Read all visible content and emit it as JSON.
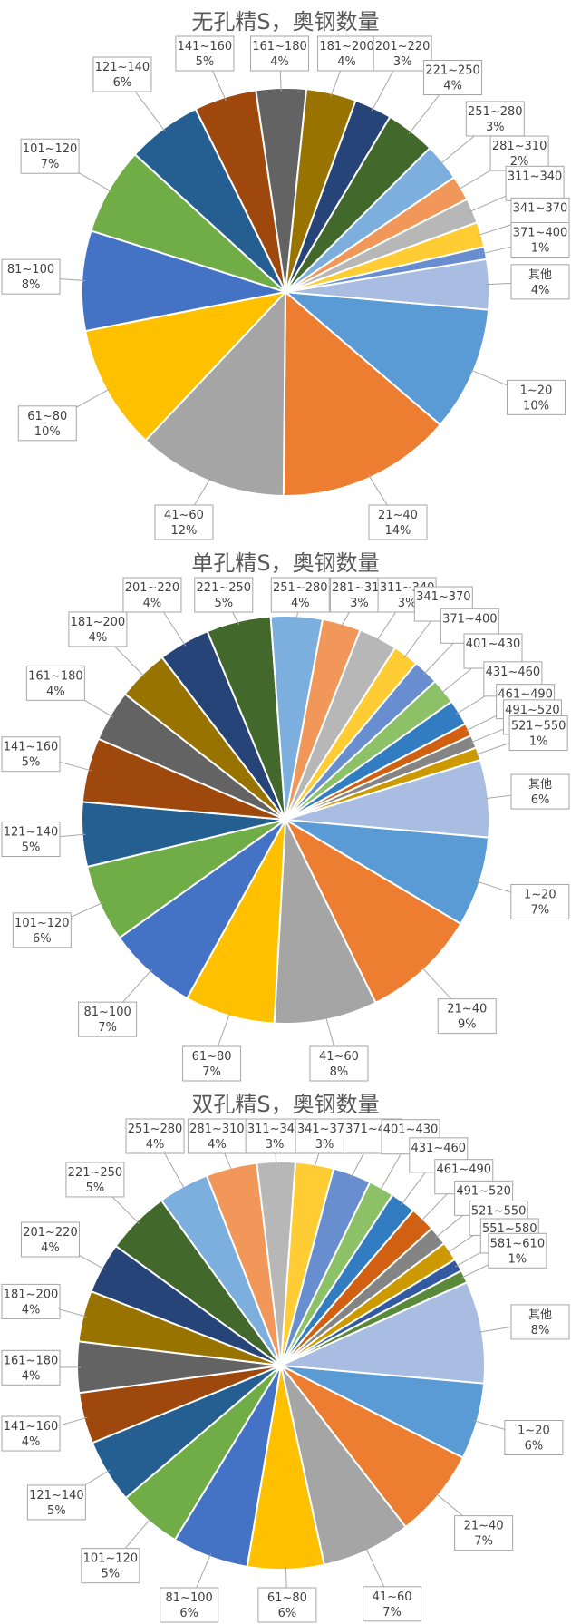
{
  "colors": [
    "#5b9bd5",
    "#ed7d31",
    "#a5a5a5",
    "#ffc000",
    "#4472c4",
    "#70ad47",
    "#255e91",
    "#9e480e",
    "#636363",
    "#997300",
    "#264478",
    "#43682b",
    "#7cafdd",
    "#f1975a",
    "#b7b7b7",
    "#ffcd33",
    "#698ed0",
    "#8cc168",
    "#327dc2",
    "#d26012",
    "#848484",
    "#cc9a00",
    "#335aa1",
    "#5a8a39"
  ],
  "other_color": "#a9bde3",
  "chart_data": [
    {
      "type": "pie",
      "title": "无孔精S，奥钢数量",
      "categories": [
        "1~20",
        "21~40",
        "41~60",
        "61~80",
        "81~100",
        "101~120",
        "121~140",
        "141~160",
        "161~180",
        "181~200",
        "201~220",
        "221~250",
        "251~280",
        "281~310",
        "311~340",
        "341~370",
        "371~400",
        "其他"
      ],
      "values": [
        10,
        14,
        12,
        10,
        8,
        7,
        6,
        5,
        4,
        4,
        3,
        4,
        3,
        2,
        2,
        2,
        1,
        4
      ],
      "labels": [
        "10%",
        "14%",
        "12%",
        "10%",
        "8%",
        "7%",
        "6%",
        "5%",
        "4%",
        "4%",
        "3%",
        "4%",
        "3%",
        "2%",
        "",
        "",
        "1%",
        "4%"
      ]
    },
    {
      "type": "pie",
      "title": "单孔精S，奥钢数量",
      "categories": [
        "1~20",
        "21~40",
        "41~60",
        "61~80",
        "81~100",
        "101~120",
        "121~140",
        "141~160",
        "161~180",
        "181~200",
        "201~220",
        "221~250",
        "251~280",
        "281~310",
        "311~340",
        "341~370",
        "371~400",
        "401~430",
        "431~460",
        "461~490",
        "491~520",
        "521~550",
        "其他"
      ],
      "values": [
        7,
        9,
        8,
        7,
        7,
        6,
        5,
        5,
        4,
        4,
        4,
        5,
        4,
        3,
        3,
        2,
        2,
        2,
        2,
        1,
        1,
        1,
        6
      ],
      "labels": [
        "7%",
        "9%",
        "8%",
        "7%",
        "7%",
        "6%",
        "5%",
        "5%",
        "4%",
        "4%",
        "4%",
        "5%",
        "4%",
        "3%",
        "3%",
        "",
        "",
        "",
        "",
        "",
        "",
        "1%",
        "6%"
      ]
    },
    {
      "type": "pie",
      "title": "双孔精S，奥钢数量",
      "categories": [
        "1~20",
        "21~40",
        "41~60",
        "61~80",
        "81~100",
        "101~120",
        "121~140",
        "141~160",
        "161~180",
        "181~200",
        "201~220",
        "221~250",
        "251~280",
        "281~310",
        "311~340",
        "341~370",
        "371~400",
        "401~430",
        "431~460",
        "461~490",
        "491~520",
        "521~550",
        "551~580",
        "581~610",
        "其他"
      ],
      "values": [
        6,
        7,
        7,
        6,
        6,
        5,
        5,
        4,
        4,
        4,
        4,
        5,
        4,
        4,
        3,
        3,
        3,
        2,
        2,
        2,
        1.5,
        1.5,
        1,
        1,
        8
      ],
      "labels": [
        "6%",
        "7%",
        "7%",
        "6%",
        "6%",
        "5%",
        "5%",
        "4%",
        "4%",
        "4%",
        "4%",
        "5%",
        "4%",
        "4%",
        "3%",
        "3%",
        "",
        "",
        "",
        "",
        "",
        "",
        "",
        "1%",
        "8%"
      ]
    }
  ]
}
